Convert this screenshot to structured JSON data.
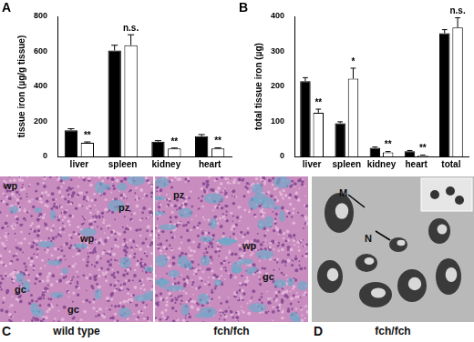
{
  "chart_data": [
    {
      "type": "bar",
      "panel": "A",
      "y_label": "tissue iron (µg/g tissue)",
      "categories": [
        "liver",
        "spleen",
        "kidney",
        "heart"
      ],
      "series": [
        {
          "color": "#000000",
          "values": [
            150,
            605,
            85,
            115
          ],
          "errors": [
            8,
            30,
            5,
            10
          ]
        },
        {
          "color": "#ffffff",
          "values": [
            78,
            635,
            45,
            45
          ],
          "errors": [
            5,
            60,
            3,
            4
          ]
        }
      ],
      "annotations": [
        "**",
        "n.s.",
        "**",
        "**"
      ],
      "ylim": [
        0,
        800
      ],
      "yticks": [
        0,
        200,
        400,
        600,
        800
      ],
      "grid": false
    },
    {
      "type": "bar",
      "panel": "B",
      "y_label": "total tissue iron (µg)",
      "categories": [
        "liver",
        "spleen",
        "kidney",
        "heart",
        "total"
      ],
      "series": [
        {
          "color": "#000000",
          "values": [
            215,
            95,
            25,
            15,
            352
          ],
          "errors": [
            10,
            4,
            2,
            2,
            10
          ]
        },
        {
          "color": "#ffffff",
          "values": [
            125,
            222,
            12,
            3,
            368
          ],
          "errors": [
            10,
            30,
            2,
            1,
            28
          ]
        }
      ],
      "annotations": [
        "**",
        "*",
        "**",
        "**",
        "n.s."
      ],
      "ylim": [
        0,
        400
      ],
      "yticks": [
        0,
        100,
        200,
        300,
        400
      ],
      "grid": false
    }
  ],
  "panels": [
    {
      "label": "C",
      "images": [
        {
          "caption": "wild type",
          "annotations": [
            "wp",
            "pz",
            "wp",
            "gc",
            "gc"
          ]
        },
        {
          "caption": "fch/fch",
          "annotations": [
            "pz",
            "wp",
            "gc"
          ]
        }
      ]
    },
    {
      "label": "D",
      "images": [
        {
          "caption": "fch/fch",
          "annotations": [
            "M",
            "N"
          ]
        }
      ]
    }
  ]
}
